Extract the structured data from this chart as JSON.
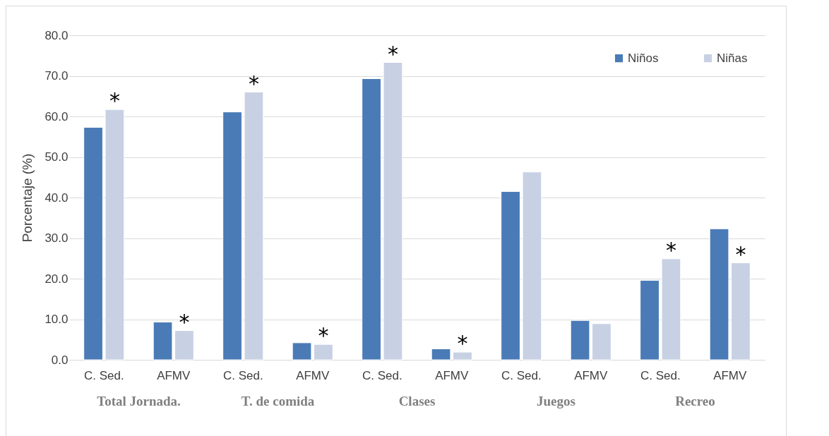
{
  "chart_data": {
    "type": "bar",
    "ylabel": "Porcentaje (%)",
    "categories": [
      "C. Sed.",
      "AFMV",
      "C. Sed.",
      "AFMV",
      "C. Sed.",
      "AFMV",
      "C. Sed.",
      "AFMV",
      "C. Sed.",
      "AFMV"
    ],
    "series": [
      {
        "name": "Niños",
        "color": "#4a7bb7",
        "values": [
          57.3,
          9.3,
          61.1,
          4.2,
          69.3,
          2.7,
          41.5,
          9.7,
          19.6,
          32.3
        ]
      },
      {
        "name": "Niñas",
        "color": "#c8d1e3",
        "values": [
          61.7,
          7.2,
          66.0,
          3.8,
          73.3,
          1.9,
          46.3,
          8.9,
          24.9,
          23.9
        ],
        "value_labels": [
          "*",
          "*",
          "*",
          "*",
          "*",
          "*",
          null,
          null,
          "*",
          "*"
        ]
      }
    ],
    "ylim": [
      0,
      80
    ],
    "yticks": [
      {
        "value": 0,
        "label": "0.0"
      },
      {
        "value": 10,
        "label": "10.0"
      },
      {
        "value": 20,
        "label": "20.0"
      },
      {
        "value": 30,
        "label": "30.0"
      },
      {
        "value": 40,
        "label": "40.0"
      },
      {
        "value": 50,
        "label": "50.0"
      },
      {
        "value": 60,
        "label": "60.0"
      },
      {
        "value": 70,
        "label": "70.0"
      },
      {
        "value": 80,
        "label": "80.0"
      }
    ],
    "grid": "y",
    "legend": "top right",
    "annotations": [
      "Total Jornada.",
      "T. de comida",
      "Clases",
      "Juegos",
      "Recreo"
    ]
  }
}
